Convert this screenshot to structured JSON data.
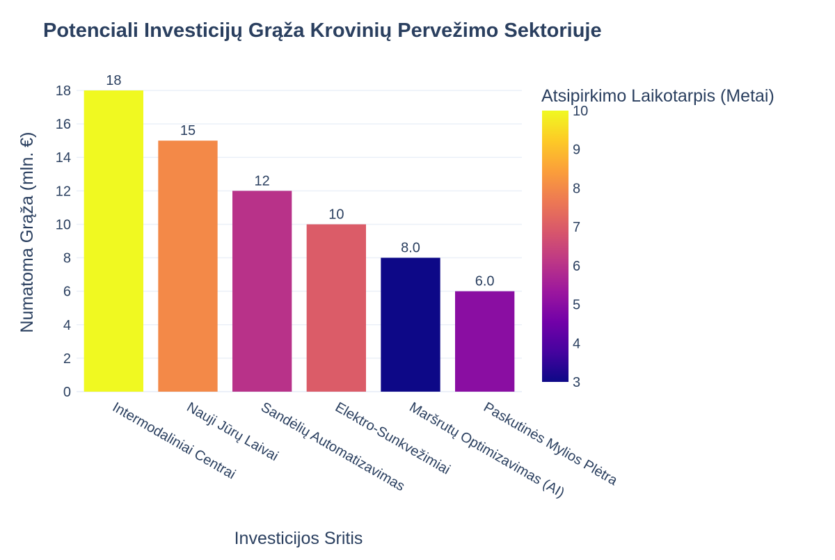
{
  "chart_data": {
    "type": "bar",
    "title": "Potenciali Investicijų Grąža Krovinių Pervežimo Sektoriuje",
    "xlabel": "Investicijos Sritis",
    "ylabel": "Numatoma Grąža (mln. €)",
    "categories": [
      "Intermodaliniai Centrai",
      "Nauji Jūrų Laivai",
      "Sandėlių Automatizavimas",
      "Elektro-Sunkvežimiai",
      "Maršrutų Optimizavimas (AI)",
      "Paskutinės Mylios Plėtra"
    ],
    "values": [
      18,
      15,
      12,
      10,
      8,
      6
    ],
    "value_labels": [
      "18",
      "15",
      "12",
      "10",
      "8.0",
      "6.0"
    ],
    "color_values": [
      10,
      8,
      6,
      7,
      3,
      5
    ],
    "ylim": [
      0,
      18
    ],
    "yticks": [
      0,
      2,
      4,
      6,
      8,
      10,
      12,
      14,
      16,
      18
    ],
    "grid": true,
    "colorbar": {
      "title": "Atsipirkimo Laikotarpis (Metai)",
      "range": [
        3,
        10
      ],
      "ticks": [
        3,
        4,
        5,
        6,
        7,
        8,
        9,
        10
      ],
      "colorscale": [
        "#0d0887",
        "#46039f",
        "#7201a8",
        "#9c179e",
        "#bd3786",
        "#d8576b",
        "#ed7953",
        "#fb9f3a",
        "#fdca26",
        "#f0f921"
      ]
    },
    "colors": {
      "text": "#2a3f5f",
      "grid": "#ebf0f8",
      "title": "#2a3f5f"
    }
  }
}
